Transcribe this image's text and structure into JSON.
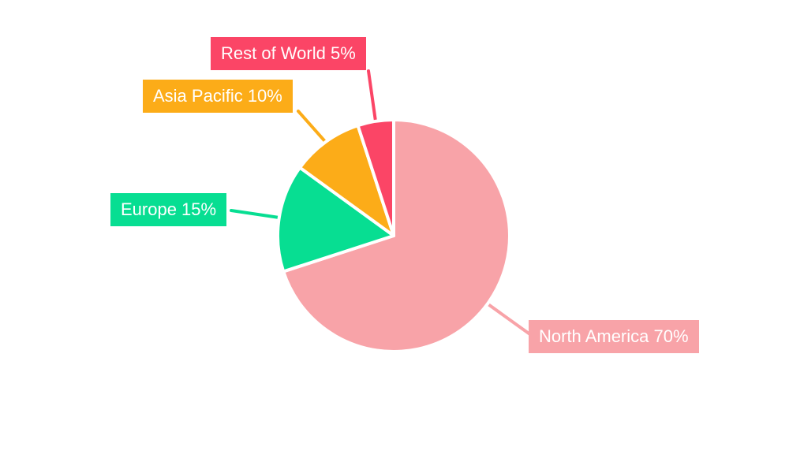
{
  "chart_data": {
    "type": "pie",
    "title": "",
    "unit": "%",
    "background_color": "#ffffff",
    "start_angle_deg": 0,
    "direction": "clockwise",
    "label_text_color": "#ffffff",
    "slice_border_color": "#ffffff",
    "slices": [
      {
        "name": "North America",
        "value": 70,
        "label": "North America 70%",
        "color": "#F8A3A8"
      },
      {
        "name": "Europe",
        "value": 15,
        "label": "Europe 15%",
        "color": "#07DE92"
      },
      {
        "name": "Asia Pacific",
        "value": 10,
        "label": "Asia Pacific 10%",
        "color": "#FCAC18"
      },
      {
        "name": "Rest of World",
        "value": 5,
        "label": "Rest of World 5%",
        "color": "#FB4566"
      }
    ]
  }
}
